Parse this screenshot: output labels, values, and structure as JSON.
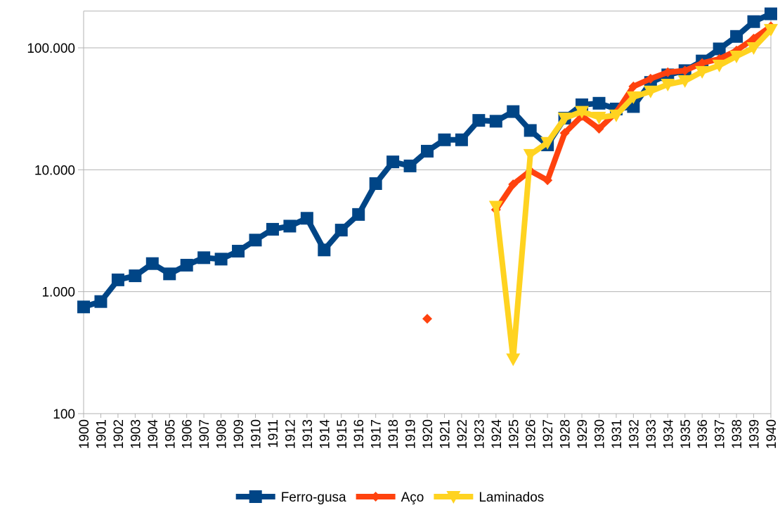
{
  "chart_data": {
    "type": "line",
    "log_y": true,
    "grid": true,
    "legend": "bottom",
    "categories": [
      "1900",
      "1901",
      "1902",
      "1903",
      "1904",
      "1905",
      "1906",
      "1907",
      "1908",
      "1909",
      "1910",
      "1911",
      "1912",
      "1913",
      "1914",
      "1915",
      "1916",
      "1917",
      "1918",
      "1919",
      "1920",
      "1921",
      "1922",
      "1923",
      "1924",
      "1925",
      "1926",
      "1927",
      "1928",
      "1929",
      "1930",
      "1931",
      "1932",
      "1933",
      "1934",
      "1935",
      "1936",
      "1937",
      "1938",
      "1939",
      "1940"
    ],
    "ylim": [
      100,
      200000
    ],
    "yticks": [
      100,
      {
        "value": 1000,
        "label": "1.000"
      },
      {
        "value": 10000,
        "label": "10.000"
      },
      {
        "value": 100000,
        "label": "100.000"
      }
    ],
    "series": [
      {
        "name": "Ferro-gusa",
        "color": "#004586",
        "marker": "square",
        "values": [
          750,
          830,
          1250,
          1350,
          1700,
          1400,
          1650,
          1900,
          1850,
          2150,
          2650,
          3250,
          3450,
          4000,
          2200,
          3200,
          4300,
          7700,
          11600,
          10750,
          14200,
          17600,
          17600,
          25400,
          25000,
          30000,
          21000,
          16000,
          26500,
          34100,
          35100,
          31500,
          33000,
          52000,
          60000,
          65000,
          78000,
          98000,
          124000,
          164000,
          190000
        ]
      },
      {
        "name": "Aço",
        "color": "#ff420e",
        "marker": "diamond",
        "values": [
          null,
          null,
          null,
          null,
          null,
          null,
          null,
          null,
          null,
          null,
          null,
          null,
          null,
          null,
          null,
          null,
          null,
          null,
          null,
          null,
          600,
          null,
          null,
          null,
          4700,
          7600,
          9800,
          8200,
          20000,
          27600,
          21700,
          29500,
          48200,
          55800,
          63000,
          65000,
          75000,
          81000,
          95000,
          119000,
          150000
        ]
      },
      {
        "name": "Laminados",
        "color": "#ffd320",
        "marker": "triangle",
        "values": [
          null,
          null,
          null,
          null,
          null,
          null,
          null,
          null,
          null,
          null,
          null,
          null,
          null,
          null,
          null,
          null,
          null,
          null,
          null,
          null,
          null,
          null,
          null,
          null,
          5000,
          280,
          13300,
          16700,
          26500,
          30000,
          26900,
          28000,
          39500,
          44000,
          50100,
          53600,
          63700,
          71800,
          85300,
          100000,
          141000
        ]
      }
    ]
  }
}
